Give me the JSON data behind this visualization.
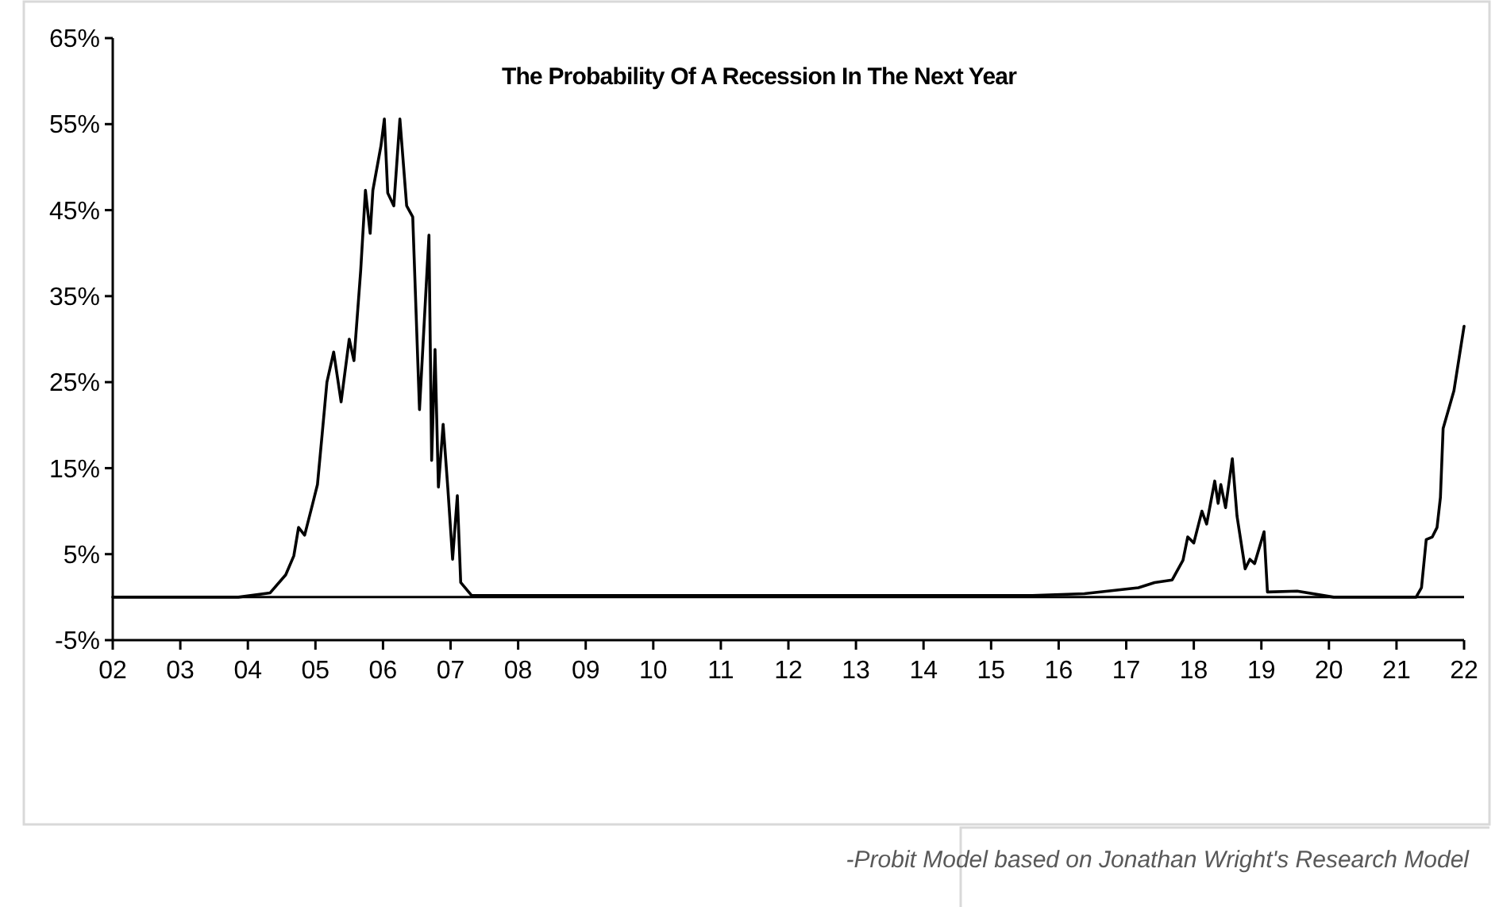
{
  "chart_data": {
    "type": "line",
    "title": "The Probability Of A Recession In The Next Year",
    "x": [
      2002,
      2003.86,
      2004.33,
      2004.56,
      2004.68,
      2004.75,
      2004.84,
      2004.96,
      2005.03,
      2005.1,
      2005.17,
      2005.27,
      2005.38,
      2005.5,
      2005.57,
      2005.67,
      2005.74,
      2005.81,
      2005.85,
      2005.97,
      2006.02,
      2006.07,
      2006.16,
      2006.25,
      2006.35,
      2006.44,
      2006.54,
      2006.68,
      2006.72,
      2006.77,
      2006.82,
      2006.89,
      2006.96,
      2007.03,
      2007.1,
      2007.15,
      2007.31,
      2011.5,
      2015.61,
      2016.38,
      2017.18,
      2017.42,
      2017.68,
      2017.84,
      2017.91,
      2018,
      2018.12,
      2018.19,
      2018.31,
      2018.36,
      2018.4,
      2018.47,
      2018.57,
      2018.64,
      2018.76,
      2018.83,
      2018.9,
      2019.04,
      2019.09,
      2019.53,
      2020.07,
      2021.29,
      2021.37,
      2021.44,
      2021.53,
      2021.6,
      2021.65,
      2021.69,
      2021.85,
      2022
    ],
    "series": [
      {
        "color": "#000000",
        "values": [
          0,
          0,
          0.5,
          2.6,
          4.8,
          8.1,
          7.2,
          10.9,
          13.1,
          19,
          25,
          28.5,
          22.7,
          30,
          27.5,
          38,
          47.3,
          42.3,
          47.3,
          52.5,
          55.6,
          47,
          45.5,
          55.6,
          45.5,
          44.2,
          21.8,
          42.1,
          15.9,
          28.8,
          12.8,
          20.1,
          12.6,
          4.4,
          11.8,
          1.7,
          0.2,
          0.2,
          0.2,
          0.4,
          1.1,
          1.7,
          2,
          4.3,
          7,
          6.3,
          10,
          8.5,
          13.5,
          10.9,
          13.1,
          10.4,
          16.1,
          9.4,
          3.3,
          4.4,
          3.9,
          7.6,
          0.6,
          0.7,
          0,
          0,
          1.1,
          6.7,
          7,
          8.1,
          11.6,
          19.6,
          24,
          31.5
        ]
      }
    ],
    "xlim": [
      2002,
      2022
    ],
    "xticks": [
      {
        "value": 2002,
        "label": "02"
      },
      {
        "value": 2003,
        "label": "03"
      },
      {
        "value": 2004,
        "label": "04"
      },
      {
        "value": 2005,
        "label": "05"
      },
      {
        "value": 2006,
        "label": "06"
      },
      {
        "value": 2007,
        "label": "07"
      },
      {
        "value": 2008,
        "label": "08"
      },
      {
        "value": 2009,
        "label": "09"
      },
      {
        "value": 2010,
        "label": "10"
      },
      {
        "value": 2011,
        "label": "11"
      },
      {
        "value": 2012,
        "label": "12"
      },
      {
        "value": 2013,
        "label": "13"
      },
      {
        "value": 2014,
        "label": "14"
      },
      {
        "value": 2015,
        "label": "15"
      },
      {
        "value": 2016,
        "label": "16"
      },
      {
        "value": 2017,
        "label": "17"
      },
      {
        "value": 2018,
        "label": "18"
      },
      {
        "value": 2019,
        "label": "19"
      },
      {
        "value": 2020,
        "label": "20"
      },
      {
        "value": 2021,
        "label": "21"
      },
      {
        "value": 2022,
        "label": "22"
      }
    ],
    "ylim": [
      -5,
      65
    ],
    "yticks": [
      {
        "value": -5,
        "label": "-5%"
      },
      {
        "value": 5,
        "label": "5%"
      },
      {
        "value": 15,
        "label": "15%"
      },
      {
        "value": 25,
        "label": "25%"
      },
      {
        "value": 35,
        "label": "35%"
      },
      {
        "value": 45,
        "label": "45%"
      },
      {
        "value": 55,
        "label": "55%"
      },
      {
        "value": 65,
        "label": "65%"
      }
    ],
    "ref_lines": [
      {
        "axis": "y",
        "value": 0,
        "color": "#000000"
      }
    ],
    "annotations": [
      "-Probit Model based on Jonathan Wright's Research Model"
    ]
  }
}
